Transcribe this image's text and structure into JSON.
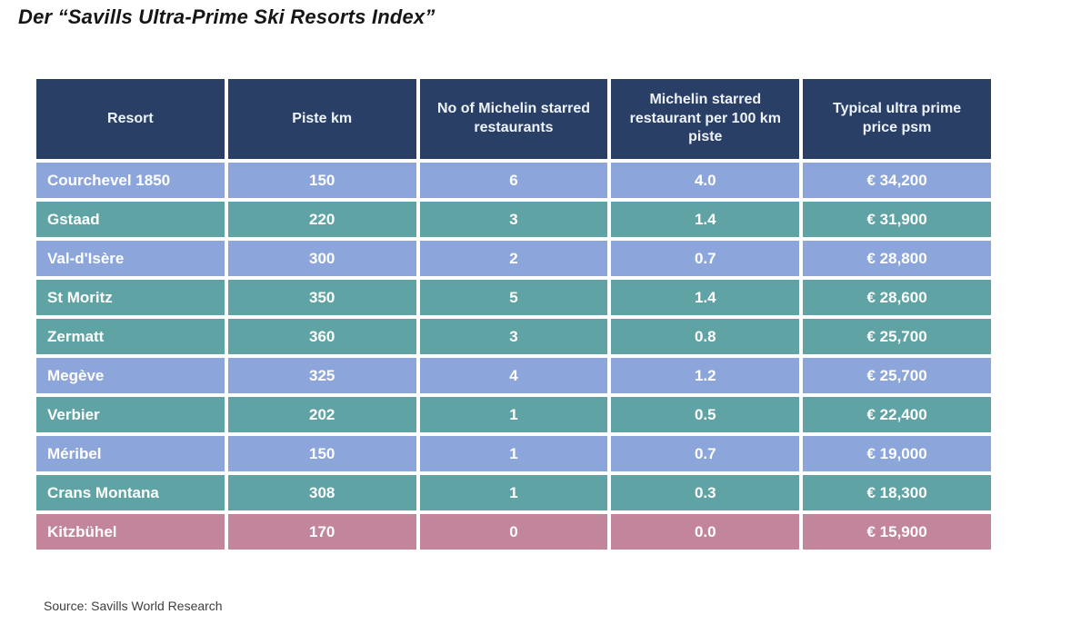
{
  "title": "Der “Savills Ultra-Prime Ski Resorts Index”",
  "source": "Source: Savills World Research",
  "colors": {
    "header_bg": "#2a3f66",
    "row_blue": "#8ca5da",
    "row_teal": "#5fa3a4",
    "row_pink": "#c3859b",
    "cell_text": "#ffffff",
    "title_text": "#161616",
    "source_text": "#3e3e3e"
  },
  "chart_data": {
    "type": "table",
    "title": "Der “Savills Ultra-Prime Ski Resorts Index”",
    "columns": [
      "Resort",
      "Piste km",
      "No of Michelin starred restaurants",
      "Michelin starred restaurant per 100 km piste",
      "Typical ultra prime price psm"
    ],
    "rows": [
      [
        "Courchevel 1850",
        "150",
        "6",
        "4.0",
        "€ 34,200"
      ],
      [
        "Gstaad",
        "220",
        "3",
        "1.4",
        "€ 31,900"
      ],
      [
        "Val-d'Isère",
        "300",
        "2",
        "0.7",
        "€ 28,800"
      ],
      [
        "St Moritz",
        "350",
        "5",
        "1.4",
        "€ 28,600"
      ],
      [
        "Zermatt",
        "360",
        "3",
        "0.8",
        "€ 25,700"
      ],
      [
        "Megève",
        "325",
        "4",
        "1.2",
        "€ 25,700"
      ],
      [
        "Verbier",
        "202",
        "1",
        "0.5",
        "€ 22,400"
      ],
      [
        "Méribel",
        "150",
        "1",
        "0.7",
        "€ 19,000"
      ],
      [
        "Crans Montana",
        "308",
        "1",
        "0.3",
        "€ 18,300"
      ],
      [
        "Kitzbühel",
        "170",
        "0",
        "0.0",
        "€ 15,900"
      ]
    ],
    "row_colors": [
      "blue",
      "teal",
      "blue",
      "teal",
      "teal",
      "blue",
      "teal",
      "blue",
      "teal",
      "pink"
    ],
    "layout_hints": {
      "grid": "white gaps between cells",
      "numeric_alignment": "center",
      "resort_alignment": "left"
    }
  }
}
